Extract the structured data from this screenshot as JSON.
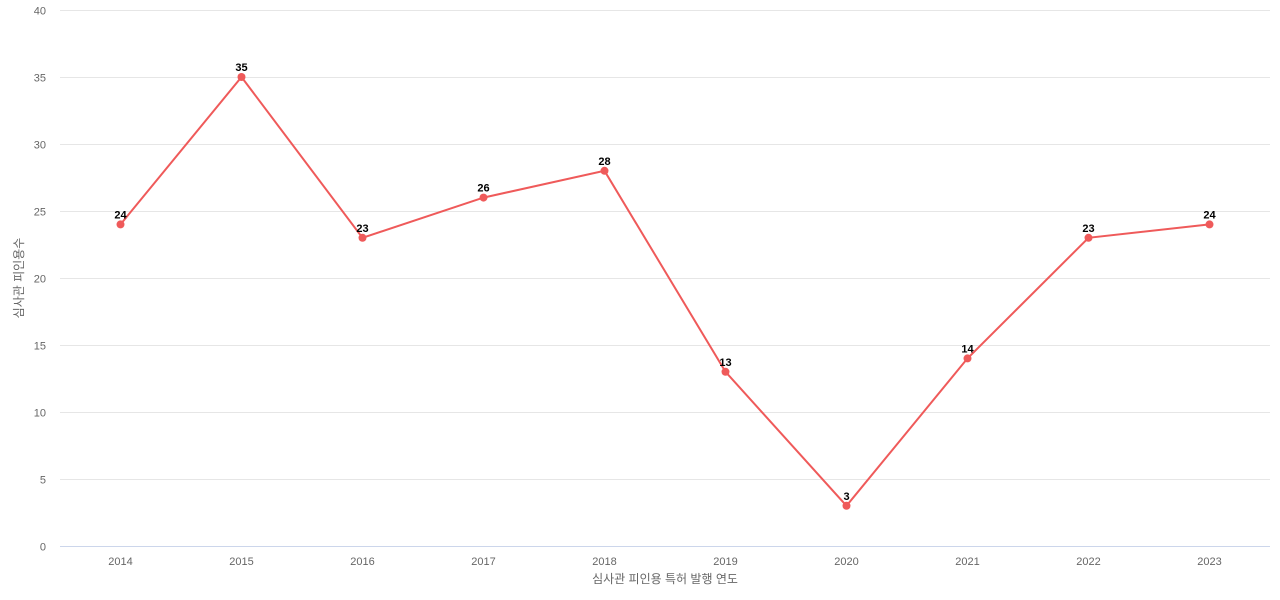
{
  "chart_data": {
    "type": "line",
    "title": "",
    "xlabel": "심사관 피인용 특허 발행 연도",
    "ylabel": "심사관 피인용수",
    "categories": [
      "2014",
      "2015",
      "2016",
      "2017",
      "2018",
      "2019",
      "2020",
      "2021",
      "2022",
      "2023"
    ],
    "series": [
      {
        "name": "심사관 피인용수",
        "values": [
          24,
          35,
          23,
          26,
          28,
          13,
          3,
          14,
          23,
          24
        ],
        "color": "#ef5a5a"
      }
    ],
    "ylim": [
      0,
      40
    ],
    "yticks": [
      0,
      5,
      10,
      15,
      20,
      25,
      30,
      35,
      40
    ],
    "grid": true,
    "legend": "none",
    "data_labels": true
  }
}
